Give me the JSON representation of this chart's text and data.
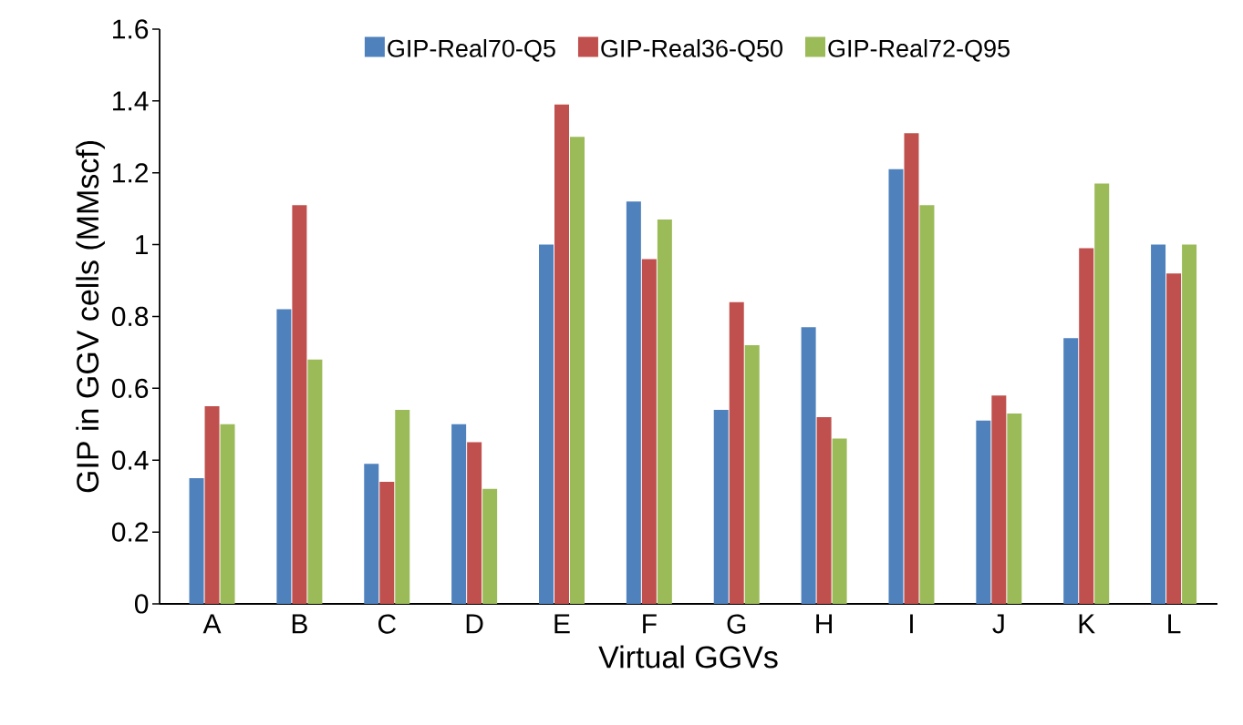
{
  "chart_data": {
    "type": "bar",
    "xlabel": "Virtual GGVs",
    "ylabel": "GIP in GGV cells (MMscf)",
    "categories": [
      "A",
      "B",
      "C",
      "D",
      "E",
      "F",
      "G",
      "H",
      "I",
      "J",
      "K",
      "L"
    ],
    "series": [
      {
        "name": "GIP-Real70-Q5",
        "color": "#4f81bd",
        "values": [
          0.35,
          0.82,
          0.39,
          0.5,
          1.0,
          1.12,
          0.54,
          0.77,
          1.21,
          0.51,
          0.74,
          1.0
        ]
      },
      {
        "name": "GIP-Real36-Q50",
        "color": "#c0504d",
        "values": [
          0.55,
          1.11,
          0.34,
          0.45,
          1.39,
          0.96,
          0.84,
          0.52,
          1.31,
          0.58,
          0.99,
          0.92
        ]
      },
      {
        "name": "GIP-Real72-Q95",
        "color": "#9bbb59",
        "values": [
          0.5,
          0.68,
          0.54,
          0.32,
          1.3,
          1.07,
          0.72,
          0.46,
          1.11,
          0.53,
          1.17,
          1.0
        ]
      }
    ],
    "ylim": [
      0,
      1.6
    ],
    "yticks": [
      0,
      0.2,
      0.4,
      0.6,
      0.8,
      1,
      1.2,
      1.4,
      1.6
    ],
    "grid": false,
    "legend": "top"
  }
}
